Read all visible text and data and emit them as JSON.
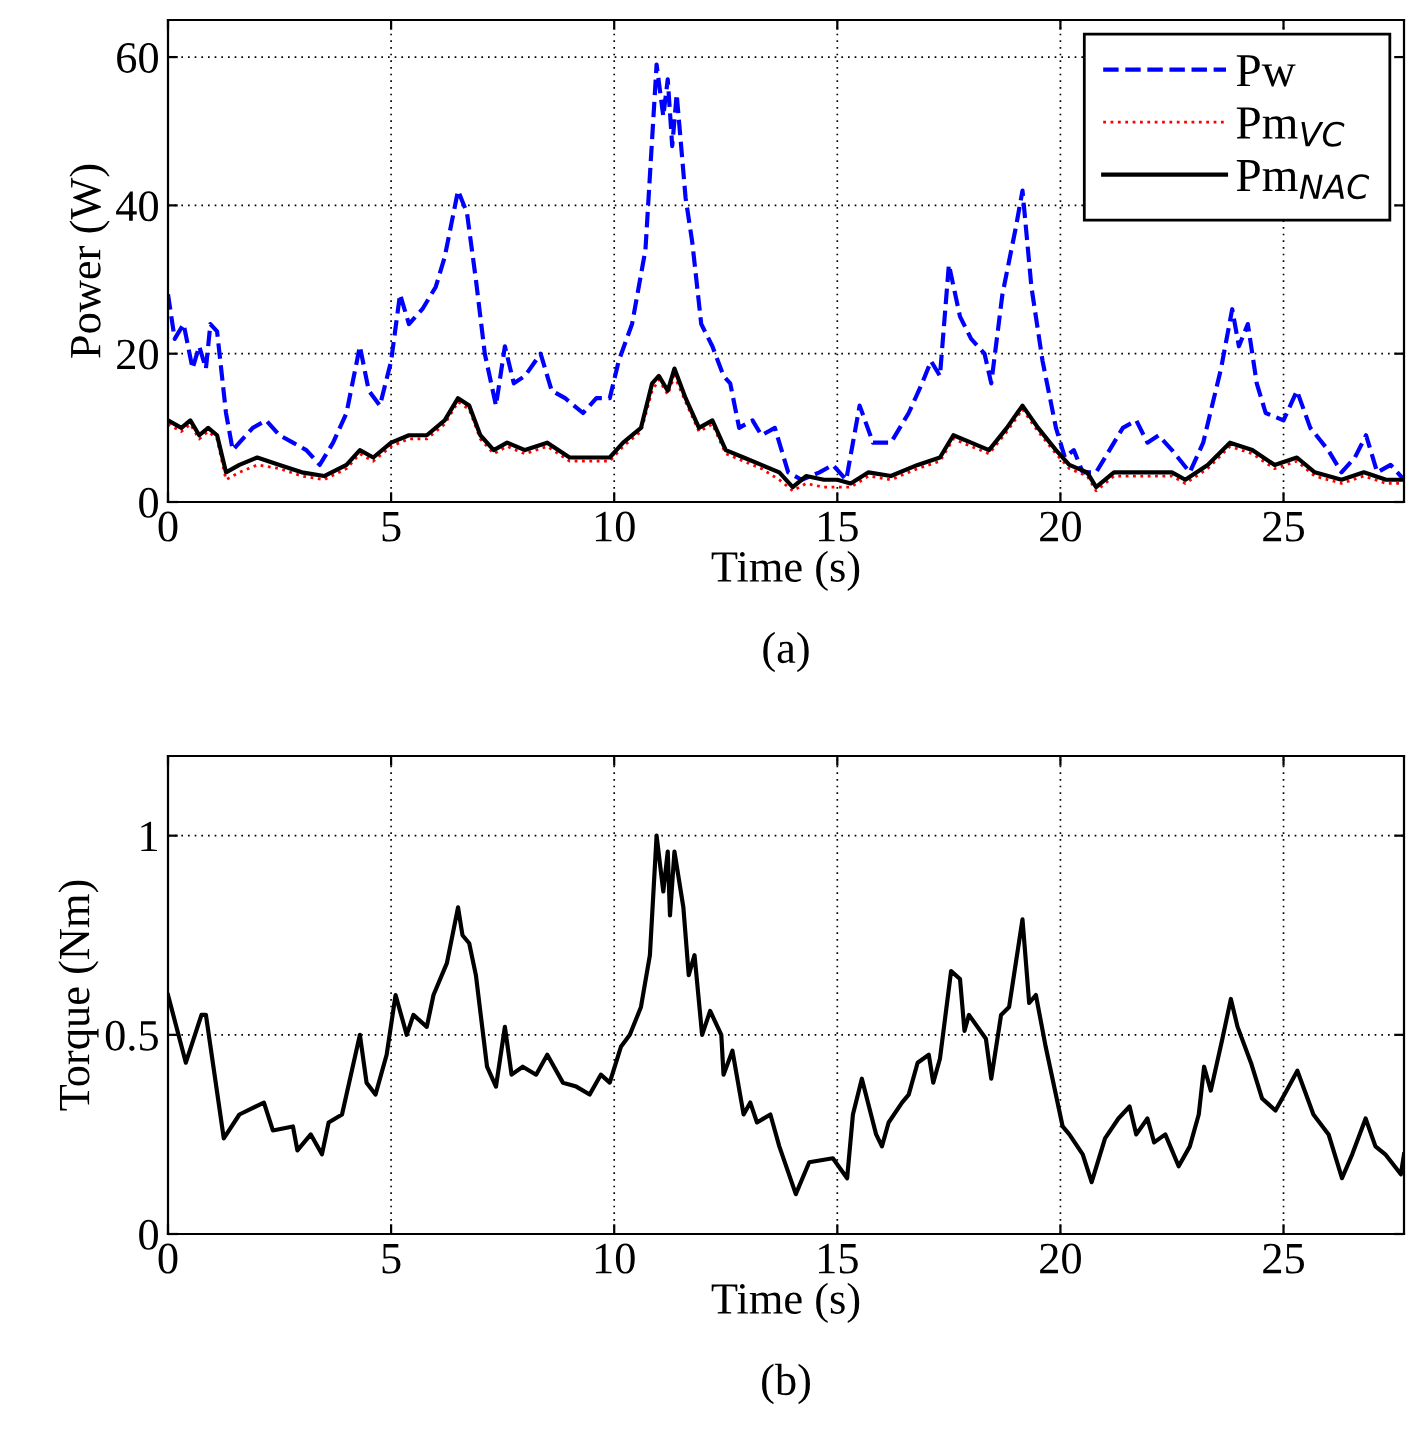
{
  "chart_data": [
    {
      "type": "line",
      "xlabel": "Time (s)",
      "ylabel": "Power (W)",
      "xlim": [
        0,
        27.7
      ],
      "ylim": [
        0,
        65
      ],
      "xticks": [
        0,
        5,
        10,
        15,
        20,
        25
      ],
      "yticks": [
        0,
        20,
        40,
        60
      ],
      "grid": true,
      "legend": "top right",
      "annotations": [
        "(a)"
      ],
      "series": [
        {
          "name": "Pw",
          "color": "#0000ff",
          "line_style": "dashed",
          "x": [
            0,
            0.15,
            0.35,
            0.55,
            0.7,
            0.85,
            0.95,
            1.1,
            1.3,
            1.45,
            1.6,
            1.9,
            2.2,
            2.5,
            2.8,
            3.1,
            3.4,
            3.7,
            4.0,
            4.3,
            4.5,
            4.75,
            5.0,
            5.2,
            5.4,
            5.7,
            6.0,
            6.2,
            6.5,
            6.7,
            6.9,
            7.1,
            7.35,
            7.55,
            7.75,
            8.0,
            8.35,
            8.6,
            8.9,
            9.3,
            9.6,
            9.9,
            10.1,
            10.4,
            10.7,
            10.95,
            11.1,
            11.2,
            11.3,
            11.4,
            11.6,
            11.75,
            11.95,
            12.2,
            12.45,
            12.6,
            12.8,
            13.1,
            13.3,
            13.6,
            13.9,
            14.2,
            14.6,
            14.9,
            15.2,
            15.5,
            15.8,
            16.2,
            16.6,
            16.9,
            17.1,
            17.3,
            17.5,
            17.75,
            18.0,
            18.3,
            18.45,
            18.7,
            19.0,
            19.15,
            19.35,
            19.6,
            19.9,
            20.1,
            20.3,
            20.5,
            20.8,
            21.1,
            21.4,
            21.7,
            21.95,
            22.2,
            22.5,
            22.9,
            23.2,
            23.4,
            23.6,
            23.85,
            24.0,
            24.2,
            24.4,
            24.6,
            25.0,
            25.3,
            25.6,
            26.0,
            26.3,
            26.6,
            26.85,
            27.1,
            27.4,
            27.7
          ],
          "values": [
            28,
            22,
            24,
            18,
            21,
            18,
            24,
            23,
            12,
            7,
            8,
            10,
            11,
            9,
            8,
            7,
            5,
            8,
            12,
            21,
            15,
            13,
            19,
            28,
            24,
            26,
            29,
            33,
            42,
            39,
            30,
            20,
            13,
            21,
            16,
            17,
            20,
            15,
            14,
            12,
            14,
            14,
            19,
            24,
            34,
            59,
            52,
            57,
            48,
            55,
            41,
            35,
            24,
            21,
            17,
            16,
            10,
            11,
            9,
            10,
            4,
            3,
            4,
            5,
            3,
            13,
            8,
            8,
            12,
            16,
            19,
            17,
            32,
            25,
            22,
            20,
            16,
            28,
            37,
            42,
            29,
            19,
            10,
            6,
            7,
            4,
            4,
            7,
            10,
            11,
            8,
            9,
            7,
            4,
            8,
            13,
            18,
            26,
            21,
            24,
            16,
            12,
            11,
            15,
            10,
            7,
            4,
            6,
            9,
            4,
            5,
            3
          ]
        },
        {
          "name": "Pm$_{VC}$",
          "color": "#ff0000",
          "line_style": "dotted",
          "x": [
            0,
            0.3,
            0.5,
            0.7,
            0.9,
            1.1,
            1.3,
            1.6,
            2.0,
            2.5,
            3.0,
            3.5,
            4.0,
            4.3,
            4.6,
            5.0,
            5.4,
            5.8,
            6.2,
            6.5,
            6.75,
            7.0,
            7.3,
            7.6,
            8.0,
            8.5,
            9.0,
            9.5,
            9.9,
            10.2,
            10.6,
            10.85,
            11.0,
            11.2,
            11.35,
            11.6,
            11.9,
            12.2,
            12.5,
            12.9,
            13.3,
            13.7,
            14.0,
            14.3,
            14.7,
            15.0,
            15.3,
            15.7,
            16.2,
            16.8,
            17.3,
            17.6,
            18.0,
            18.4,
            18.8,
            19.15,
            19.5,
            19.9,
            20.2,
            20.6,
            20.8,
            21.2,
            21.8,
            22.5,
            22.8,
            23.3,
            23.8,
            24.3,
            24.8,
            25.3,
            25.7,
            26.3,
            26.8,
            27.3,
            27.7
          ],
          "values": [
            10.5,
            9.5,
            10.5,
            8.5,
            9.5,
            8.5,
            3,
            4,
            5,
            4.5,
            3.5,
            3,
            4.5,
            6.5,
            5.5,
            7.5,
            8.5,
            8.5,
            10.5,
            13.5,
            12.5,
            8.5,
            6.5,
            7.5,
            6.5,
            7.5,
            5.5,
            5.5,
            5.5,
            7.5,
            9.5,
            15,
            16.5,
            14.5,
            17,
            13.5,
            9.5,
            10.5,
            6.5,
            5.5,
            4.5,
            3,
            1.5,
            2.5,
            2,
            2,
            2,
            3.5,
            3,
            4.5,
            5.5,
            8.5,
            7.5,
            6.5,
            9.5,
            12.5,
            9.5,
            6.5,
            4.5,
            3.5,
            1.5,
            3.5,
            3.5,
            3.5,
            2.5,
            4.5,
            7.5,
            6.5,
            4.5,
            5.5,
            3.5,
            2.5,
            3.5,
            2.5,
            2.5
          ]
        },
        {
          "name": "Pm$_{NAC}$",
          "color": "#000000",
          "line_style": "solid",
          "x": [
            0,
            0.3,
            0.5,
            0.7,
            0.9,
            1.1,
            1.3,
            1.6,
            2.0,
            2.5,
            3.0,
            3.5,
            4.0,
            4.3,
            4.6,
            5.0,
            5.4,
            5.8,
            6.2,
            6.5,
            6.75,
            7.0,
            7.3,
            7.6,
            8.0,
            8.5,
            9.0,
            9.5,
            9.9,
            10.2,
            10.6,
            10.85,
            11.0,
            11.2,
            11.35,
            11.6,
            11.9,
            12.2,
            12.5,
            12.9,
            13.3,
            13.7,
            14.0,
            14.3,
            14.7,
            15.0,
            15.3,
            15.7,
            16.2,
            16.8,
            17.3,
            17.6,
            18.0,
            18.4,
            18.8,
            19.15,
            19.5,
            19.9,
            20.2,
            20.6,
            20.8,
            21.2,
            21.8,
            22.5,
            22.8,
            23.3,
            23.8,
            24.3,
            24.8,
            25.3,
            25.7,
            26.3,
            26.8,
            27.3,
            27.7
          ],
          "values": [
            11,
            10,
            11,
            9,
            10,
            9,
            4,
            5,
            6,
            5,
            4,
            3.5,
            5,
            7,
            6,
            8,
            9,
            9,
            11,
            14,
            13,
            9,
            7,
            8,
            7,
            8,
            6,
            6,
            6,
            8,
            10,
            16,
            17,
            15,
            18,
            14,
            10,
            11,
            7,
            6,
            5,
            4,
            2,
            3.5,
            3,
            3,
            2.5,
            4,
            3.5,
            5,
            6,
            9,
            8,
            7,
            10,
            13,
            10,
            7,
            5,
            4,
            2,
            4,
            4,
            4,
            3,
            5,
            8,
            7,
            5,
            6,
            4,
            3,
            4,
            3,
            3
          ]
        }
      ]
    },
    {
      "type": "line",
      "xlabel": "Time (s)",
      "ylabel": "Torque (Nm)",
      "xlim": [
        0,
        27.7
      ],
      "ylim": [
        0,
        1.2
      ],
      "xticks": [
        0,
        5,
        10,
        15,
        20,
        25
      ],
      "yticks": [
        0,
        0.5,
        1
      ],
      "grid": true,
      "annotations": [
        "(b)"
      ],
      "series": [
        {
          "color": "#000000",
          "line_style": "solid",
          "x": [
            0,
            0.4,
            0.75,
            0.85,
            1.25,
            1.6,
            2.15,
            2.35,
            2.8,
            2.9,
            3.2,
            3.45,
            3.6,
            3.9,
            4.3,
            4.45,
            4.65,
            4.9,
            5.1,
            5.35,
            5.5,
            5.8,
            5.95,
            6.25,
            6.5,
            6.6,
            6.75,
            6.9,
            7.15,
            7.35,
            7.55,
            7.7,
            7.95,
            8.25,
            8.5,
            8.85,
            9.15,
            9.45,
            9.7,
            9.9,
            10.15,
            10.35,
            10.6,
            10.8,
            10.95,
            11.1,
            11.2,
            11.25,
            11.35,
            11.55,
            11.67,
            11.8,
            11.97,
            12.15,
            12.4,
            12.45,
            12.65,
            12.9,
            13.05,
            13.2,
            13.5,
            13.7,
            14.07,
            14.37,
            14.9,
            15.22,
            15.35,
            15.55,
            15.87,
            16.0,
            16.15,
            16.45,
            16.6,
            16.8,
            17.05,
            17.15,
            17.3,
            17.55,
            17.75,
            17.85,
            17.95,
            18.33,
            18.45,
            18.67,
            18.85,
            19.0,
            19.15,
            19.3,
            19.45,
            19.67,
            20.05,
            20.2,
            20.5,
            20.7,
            21.0,
            21.3,
            21.55,
            21.7,
            21.95,
            22.1,
            22.35,
            22.65,
            22.9,
            23.1,
            23.22,
            23.37,
            23.63,
            23.82,
            23.97,
            24.27,
            24.52,
            24.82,
            25.07,
            25.31,
            25.67,
            26.01,
            26.31,
            26.54,
            26.84,
            27.06,
            27.28,
            27.63,
            27.7
          ],
          "values": [
            0.6,
            0.43,
            0.55,
            0.55,
            0.24,
            0.3,
            0.33,
            0.26,
            0.27,
            0.21,
            0.25,
            0.2,
            0.28,
            0.3,
            0.5,
            0.38,
            0.35,
            0.45,
            0.6,
            0.5,
            0.55,
            0.52,
            0.6,
            0.68,
            0.82,
            0.75,
            0.73,
            0.65,
            0.42,
            0.37,
            0.52,
            0.4,
            0.42,
            0.4,
            0.45,
            0.38,
            0.37,
            0.35,
            0.4,
            0.38,
            0.47,
            0.5,
            0.57,
            0.7,
            1.0,
            0.86,
            0.96,
            0.8,
            0.96,
            0.82,
            0.65,
            0.7,
            0.5,
            0.56,
            0.5,
            0.4,
            0.46,
            0.3,
            0.33,
            0.28,
            0.3,
            0.22,
            0.1,
            0.18,
            0.19,
            0.14,
            0.3,
            0.39,
            0.25,
            0.22,
            0.28,
            0.33,
            0.35,
            0.43,
            0.45,
            0.38,
            0.44,
            0.66,
            0.64,
            0.51,
            0.55,
            0.49,
            0.39,
            0.55,
            0.57,
            0.68,
            0.79,
            0.58,
            0.6,
            0.47,
            0.27,
            0.25,
            0.2,
            0.13,
            0.24,
            0.29,
            0.32,
            0.25,
            0.29,
            0.23,
            0.25,
            0.17,
            0.22,
            0.3,
            0.42,
            0.36,
            0.49,
            0.59,
            0.52,
            0.43,
            0.34,
            0.31,
            0.36,
            0.41,
            0.3,
            0.25,
            0.14,
            0.2,
            0.29,
            0.22,
            0.2,
            0.15,
            0.2
          ]
        }
      ]
    }
  ]
}
